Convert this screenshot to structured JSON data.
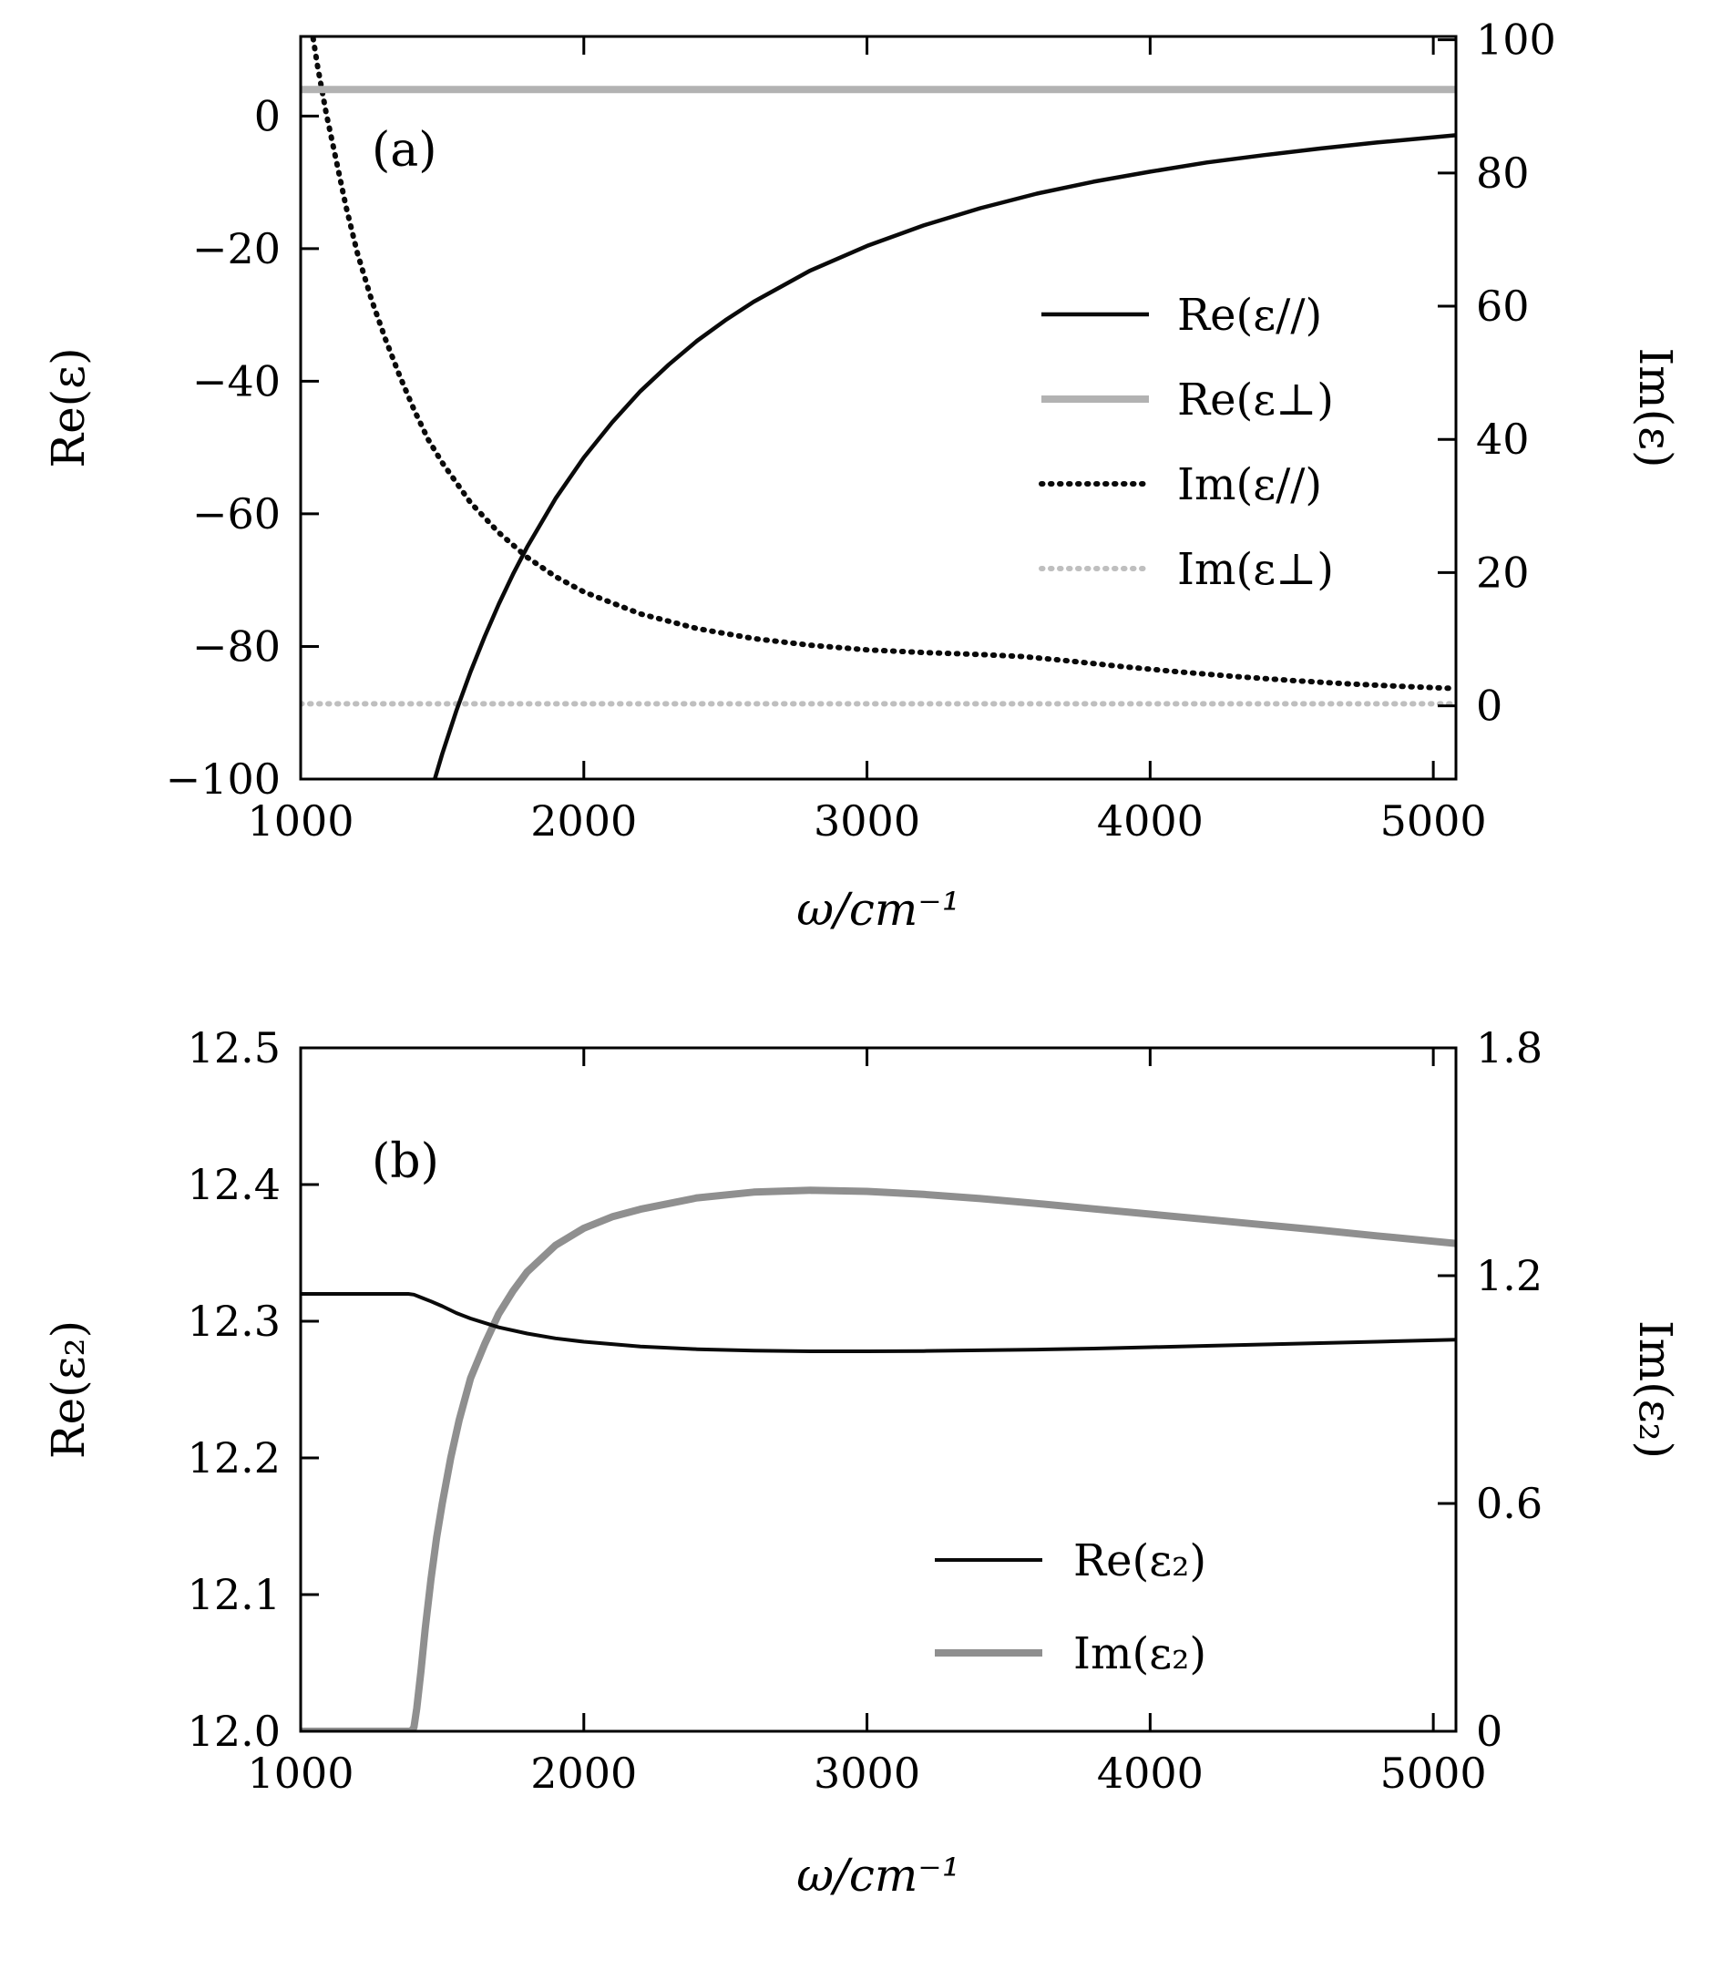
{
  "figure": {
    "background": "#ffffff"
  },
  "chart_data": [
    {
      "type": "line",
      "panel_label": "(a)",
      "xlabel": "ω/cm⁻¹",
      "ylabel_left": "Re(ε)",
      "ylabel_right": "Im(ε)",
      "x_range": [
        1000,
        5080
      ],
      "x_ticks": [
        {
          "v": 1000,
          "label": "1000"
        },
        {
          "v": 2000,
          "label": "2000"
        },
        {
          "v": 3000,
          "label": "3000"
        },
        {
          "v": 4000,
          "label": "4000"
        },
        {
          "v": 5000,
          "label": "5000"
        }
      ],
      "y_left_range": [
        -100,
        12
      ],
      "y_left_ticks": [
        {
          "v": 0,
          "label": "0"
        },
        {
          "v": -20,
          "label": "−20"
        },
        {
          "v": -40,
          "label": "−40"
        },
        {
          "v": -60,
          "label": "−60"
        },
        {
          "v": -80,
          "label": "−80"
        },
        {
          "v": -100,
          "label": "−100"
        }
      ],
      "y_right_range": [
        -11,
        100.5
      ],
      "y_right_ticks": [
        {
          "v": 100,
          "label": "100"
        },
        {
          "v": 80,
          "label": "80"
        },
        {
          "v": 60,
          "label": "60"
        },
        {
          "v": 40,
          "label": "40"
        },
        {
          "v": 20,
          "label": "20"
        },
        {
          "v": 0,
          "label": "0"
        }
      ],
      "grid": false,
      "legend_position": "middle-right",
      "series": [
        {
          "name": "Re(ε//)",
          "axis": "left",
          "style": "solid",
          "color": "#0a0a0a",
          "width": 4.5,
          "x": [
            1400,
            1450,
            1500,
            1550,
            1600,
            1650,
            1700,
            1750,
            1800,
            1900,
            2000,
            2100,
            2200,
            2300,
            2400,
            2500,
            2600,
            2800,
            3000,
            3200,
            3400,
            3600,
            3800,
            4000,
            4200,
            4400,
            4600,
            4800,
            5080
          ],
          "y": [
            -111.3,
            -103.4,
            -96.2,
            -89.7,
            -83.8,
            -78.5,
            -73.6,
            -69.1,
            -65.0,
            -57.7,
            -51.5,
            -46.2,
            -41.5,
            -37.5,
            -33.9,
            -30.8,
            -28.0,
            -23.3,
            -19.6,
            -16.5,
            -13.9,
            -11.7,
            -9.9,
            -8.4,
            -7.0,
            -5.9,
            -4.9,
            -4.0,
            -2.9
          ]
        },
        {
          "name": "Re(ε⊥)",
          "axis": "left",
          "style": "solid",
          "color": "#b2b2b2",
          "width": 8,
          "x": [
            1000,
            5080
          ],
          "y": [
            4,
            4
          ]
        },
        {
          "name": "Im(ε//)",
          "axis": "right",
          "style": "dotted",
          "color": "#0a0a0a",
          "width": 6,
          "x": [
            1000,
            1015,
            1030,
            1060,
            1090,
            1120,
            1160,
            1200,
            1250,
            1300,
            1350,
            1400,
            1450,
            1500,
            1600,
            1700,
            1800,
            1900,
            2000,
            2200,
            2400,
            2600,
            2800,
            3000,
            3200,
            3400,
            3550,
            3700,
            3900,
            4100,
            4300,
            4500,
            4700,
            4900,
            5080
          ],
          "y": [
            122,
            112,
            104,
            96,
            89,
            83,
            75,
            68,
            61,
            55,
            49.5,
            44.5,
            40,
            36.5,
            30.5,
            26,
            22.3,
            19.4,
            17.1,
            13.8,
            11.6,
            10.1,
            9.1,
            8.4,
            8.0,
            7.7,
            7.4,
            6.8,
            5.9,
            5.1,
            4.4,
            3.8,
            3.3,
            2.9,
            2.6
          ]
        },
        {
          "name": "Im(ε⊥)",
          "axis": "right",
          "style": "dotted",
          "color": "#bfbfbf",
          "width": 6,
          "x": [
            1000,
            5080
          ],
          "y": [
            0.3,
            0.3
          ]
        }
      ]
    },
    {
      "type": "line",
      "panel_label": "(b)",
      "xlabel": "ω/cm⁻¹",
      "ylabel_left": "Re(ε₂)",
      "ylabel_right": "Im(ε₂)",
      "x_range": [
        1000,
        5080
      ],
      "x_ticks": [
        {
          "v": 1000,
          "label": "1000"
        },
        {
          "v": 2000,
          "label": "2000"
        },
        {
          "v": 3000,
          "label": "3000"
        },
        {
          "v": 4000,
          "label": "4000"
        },
        {
          "v": 5000,
          "label": "5000"
        }
      ],
      "y_left_range": [
        12.0,
        12.5
      ],
      "y_left_ticks": [
        {
          "v": 12.5,
          "label": "12.5"
        },
        {
          "v": 12.4,
          "label": "12.4"
        },
        {
          "v": 12.3,
          "label": "12.3"
        },
        {
          "v": 12.2,
          "label": "12.2"
        },
        {
          "v": 12.1,
          "label": "12.1"
        },
        {
          "v": 12.0,
          "label": "12.0"
        }
      ],
      "y_right_range": [
        0,
        1.8
      ],
      "y_right_ticks": [
        {
          "v": 1.8,
          "label": "1.8"
        },
        {
          "v": 1.2,
          "label": "1.2"
        },
        {
          "v": 0.6,
          "label": "0.6"
        },
        {
          "v": 0,
          "label": "0"
        }
      ],
      "grid": false,
      "legend_position": "bottom-right",
      "series": [
        {
          "name": "Re(ε₂)",
          "axis": "left",
          "style": "solid",
          "color": "#0a0a0a",
          "width": 4,
          "x": [
            1000,
            1100,
            1200,
            1300,
            1380,
            1400,
            1430,
            1460,
            1500,
            1550,
            1600,
            1700,
            1800,
            1900,
            2000,
            2200,
            2400,
            2600,
            2800,
            3000,
            3200,
            3400,
            3600,
            3800,
            4000,
            4200,
            4400,
            4600,
            4800,
            5080
          ],
          "y": [
            12.32,
            12.32,
            12.32,
            12.32,
            12.32,
            12.3195,
            12.317,
            12.3145,
            12.311,
            12.306,
            12.302,
            12.2955,
            12.291,
            12.2875,
            12.285,
            12.2815,
            12.2795,
            12.2785,
            12.278,
            12.278,
            12.2782,
            12.2787,
            12.2793,
            12.28,
            12.281,
            12.282,
            12.283,
            12.284,
            12.285,
            12.2865
          ]
        },
        {
          "name": "Im(ε₂)",
          "axis": "right",
          "style": "solid",
          "color": "#8f8f8f",
          "width": 8,
          "x": [
            1000,
            1300,
            1390,
            1400,
            1410,
            1425,
            1440,
            1460,
            1480,
            1500,
            1530,
            1560,
            1600,
            1650,
            1700,
            1750,
            1800,
            1900,
            2000,
            2100,
            2200,
            2400,
            2600,
            2800,
            3000,
            3200,
            3400,
            3600,
            3800,
            4000,
            4200,
            4400,
            4600,
            4800,
            5080
          ],
          "y": [
            0,
            0,
            0,
            0.01,
            0.06,
            0.16,
            0.27,
            0.4,
            0.51,
            0.6,
            0.72,
            0.82,
            0.93,
            1.02,
            1.1,
            1.16,
            1.21,
            1.28,
            1.325,
            1.355,
            1.375,
            1.405,
            1.42,
            1.425,
            1.422,
            1.414,
            1.403,
            1.39,
            1.376,
            1.362,
            1.348,
            1.334,
            1.32,
            1.305,
            1.285
          ]
        }
      ]
    }
  ]
}
